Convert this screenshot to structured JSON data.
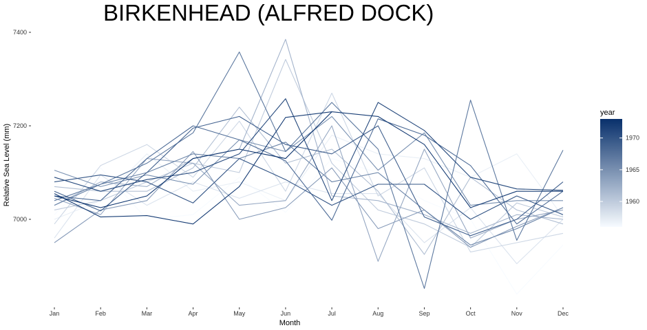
{
  "chart_data": {
    "type": "line",
    "title": "BIRKENHEAD (ALFRED DOCK)",
    "xlabel": "Month",
    "ylabel": "Relative Sea Level (mm)",
    "categories": [
      "Jan",
      "Feb",
      "Mar",
      "Apr",
      "May",
      "Jun",
      "Jul",
      "Aug",
      "Sep",
      "Oct",
      "Nov",
      "Dec"
    ],
    "y_ticks": [
      7000,
      7200,
      7400
    ],
    "ylim": [
      6825,
      7415
    ],
    "grid": false,
    "legend": {
      "title": "year",
      "position": "right",
      "labels": [
        1960,
        1965,
        1970
      ],
      "range": [
        1956,
        1973
      ],
      "color_low": "#f7fbff",
      "color_high": "#08306b"
    },
    "series": [
      {
        "year": 1973,
        "values": [
          7050,
          7025,
          7050,
          7130,
          7150,
          7130,
          7230,
          null,
          null,
          null,
          null,
          null
        ]
      },
      {
        "year": 1972,
        "values": [
          7055,
          7005,
          7008,
          6990,
          7070,
          7218,
          7230,
          7220,
          7160,
          7025,
          7060,
          7060
        ]
      },
      {
        "year": 1971,
        "values": [
          7090,
          7060,
          7085,
          7100,
          7140,
          7258,
          7040,
          7250,
          7190,
          7090,
          7065,
          7062
        ]
      },
      {
        "year": 1970,
        "values": [
          7080,
          7095,
          7080,
          7035,
          7130,
          7085,
          7030,
          7075,
          7075,
          7000,
          7050,
          7010
        ]
      },
      {
        "year": 1969,
        "values": [
          7060,
          7018,
          7100,
          7195,
          7220,
          7160,
          7140,
          7200,
          7005,
          6965,
          7000,
          7080
        ]
      },
      {
        "year": 1968,
        "values": [
          7050,
          7040,
          7130,
          7200,
          7170,
          7125,
          6998,
          7215,
          7180,
          7115,
          6990,
          7060
        ]
      },
      {
        "year": 1967,
        "values": [
          7040,
          7075,
          7120,
          7185,
          7358,
          7145,
          7250,
          7150,
          6852,
          7255,
          6955,
          7148
        ]
      },
      {
        "year": 1966,
        "values": [
          7030,
          7075,
          7100,
          7140,
          7130,
          7165,
          7080,
          7100,
          7020,
          6945,
          6980,
          7025
        ]
      },
      {
        "year": 1965,
        "values": [
          7105,
          7070,
          7095,
          7075,
          7170,
          7145,
          7220,
          7105,
          7185,
          7030,
          7040,
          7040
        ]
      },
      {
        "year": 1964,
        "values": [
          6950,
          7020,
          7040,
          7145,
          7000,
          7025,
          7110,
          6980,
          7020,
          6940,
          6985,
          7025
        ]
      },
      {
        "year": 1963,
        "values": [
          7045,
          7010,
          7130,
          7120,
          7030,
          7040,
          7200,
          6910,
          7150,
          6960,
          7000,
          7020
        ]
      },
      {
        "year": 1962,
        "values": [
          7030,
          7080,
          7070,
          7130,
          7150,
          7385,
          7050,
          7040,
          7010,
          6970,
          7010,
          7000
        ]
      },
      {
        "year": 1961,
        "values": [
          7070,
          7060,
          7060,
          7110,
          7240,
          7120,
          7150,
          7060,
          6925,
          7090,
          7020,
          6990
        ]
      },
      {
        "year": 1960,
        "values": [
          7020,
          7040,
          7080,
          7120,
          7100,
          7342,
          7120,
          7020,
          6990,
          6940,
          7035,
          7005
        ]
      },
      {
        "year": 1959,
        "values": [
          6990,
          7115,
          7160,
          7090,
          7210,
          7060,
          7270,
          7050,
          7110,
          6930,
          6950,
          6970
        ]
      },
      {
        "year": 1958,
        "values": [
          6960,
          7095,
          7030,
          7080,
          7045,
          7080,
          7055,
          7055,
          6950,
          7025,
          6905,
          7000
        ]
      },
      {
        "year": 1957,
        "values": [
          7000,
          7040,
          7140,
          7060,
          7080,
          7040,
          7180,
          7140,
          7130,
          7090,
          7140,
          7005
        ]
      },
      {
        "year": 1956,
        "values": [
          7010,
          7110,
          7000,
          7010,
          7090,
          7015,
          7130,
          7100,
          7040,
          7000,
          6840,
          6945
        ]
      }
    ]
  }
}
